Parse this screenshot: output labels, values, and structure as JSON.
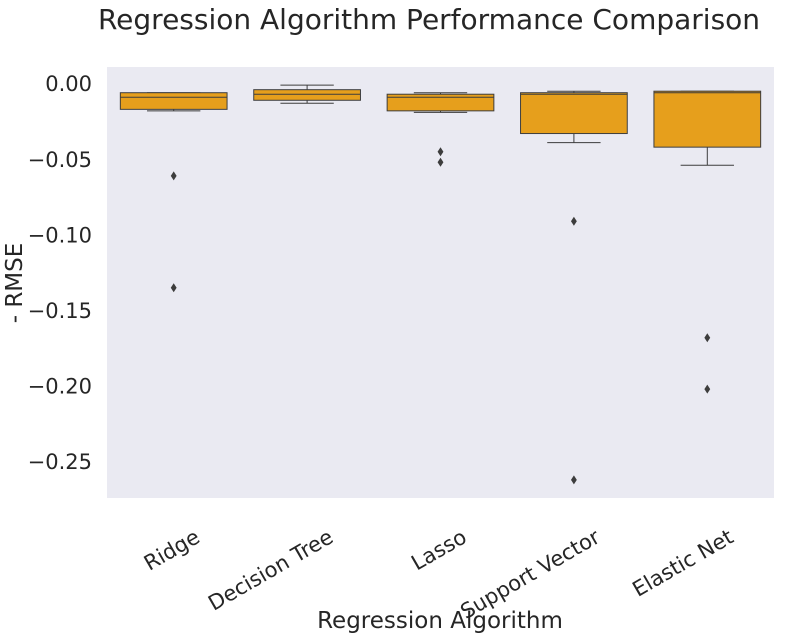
{
  "chart_data": {
    "type": "box",
    "title": "Regression Algorithm Performance Comparison",
    "xlabel": "Regression Algorithm",
    "ylabel": "- RMSE",
    "ylim": [
      -0.273,
      0.012
    ],
    "yticks": [
      0.0,
      -0.05,
      -0.1,
      -0.15,
      -0.2,
      -0.25
    ],
    "ytick_labels": [
      "0.00",
      "−0.05",
      "−0.10",
      "−0.15",
      "−0.20",
      "−0.25"
    ],
    "grid": false,
    "box_color": "#e69f1c",
    "background_color": "#eaeaf2",
    "categories": [
      "Ridge",
      "Decision Tree",
      "Lasso",
      "Support Vector",
      "Elastic Net"
    ],
    "boxes": [
      {
        "whisker_low": -0.017,
        "q1": -0.016,
        "median": -0.008,
        "q3": -0.005,
        "whisker_high": -0.005,
        "outliers": [
          -0.06,
          -0.134
        ]
      },
      {
        "whisker_low": -0.012,
        "q1": -0.01,
        "median": -0.006,
        "q3": -0.003,
        "whisker_high": 0.0,
        "outliers": []
      },
      {
        "whisker_low": -0.018,
        "q1": -0.017,
        "median": -0.008,
        "q3": -0.006,
        "whisker_high": -0.005,
        "outliers": [
          -0.044,
          -0.051
        ]
      },
      {
        "whisker_low": -0.038,
        "q1": -0.032,
        "median": -0.006,
        "q3": -0.005,
        "whisker_high": -0.004,
        "outliers": [
          -0.09,
          -0.261
        ]
      },
      {
        "whisker_low": -0.053,
        "q1": -0.041,
        "median": -0.005,
        "q3": -0.004,
        "whisker_high": -0.004,
        "outliers": [
          -0.167,
          -0.201
        ]
      }
    ]
  }
}
